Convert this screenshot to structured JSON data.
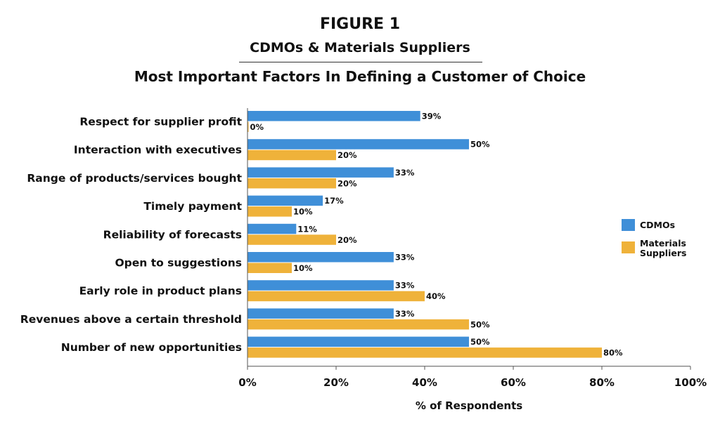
{
  "figure": {
    "label": "FIGURE 1",
    "subtitle": "CDMOs & Materials Suppliers"
  },
  "colors": {
    "cdmos": "#3f8fd8",
    "materials": "#efb23a"
  },
  "chart_data": {
    "type": "bar",
    "orientation": "horizontal",
    "title": "Most Important Factors In Defining a Customer of Choice",
    "xlabel": "% of Respondents",
    "ylabel": "",
    "xlim": [
      0,
      100
    ],
    "xticks": [
      "0%",
      "20%",
      "40%",
      "60%",
      "80%",
      "100%"
    ],
    "grid": false,
    "legend_position": "right",
    "categories": [
      "Respect for supplier profit",
      "Interaction with executives",
      "Range of products/services bought",
      "Timely payment",
      "Reliability of  forecasts",
      "Open to suggestions",
      "Early role in product plans",
      "Revenues above a certain threshold",
      "Number of new  opportunities"
    ],
    "series": [
      {
        "name": "CDMOs",
        "values": [
          39,
          50,
          33,
          17,
          11,
          33,
          33,
          33,
          50
        ],
        "labels": [
          "39%",
          "50%",
          "33%",
          "17%",
          "11%",
          "33%",
          "33%",
          "33%",
          "50%"
        ]
      },
      {
        "name": "Materials Suppliers",
        "values": [
          0,
          20,
          20,
          10,
          20,
          10,
          40,
          50,
          80
        ],
        "labels": [
          "0%",
          "20%",
          "20%",
          "10%",
          "20%",
          "10%",
          "40%",
          "50%",
          "80%"
        ]
      }
    ]
  }
}
